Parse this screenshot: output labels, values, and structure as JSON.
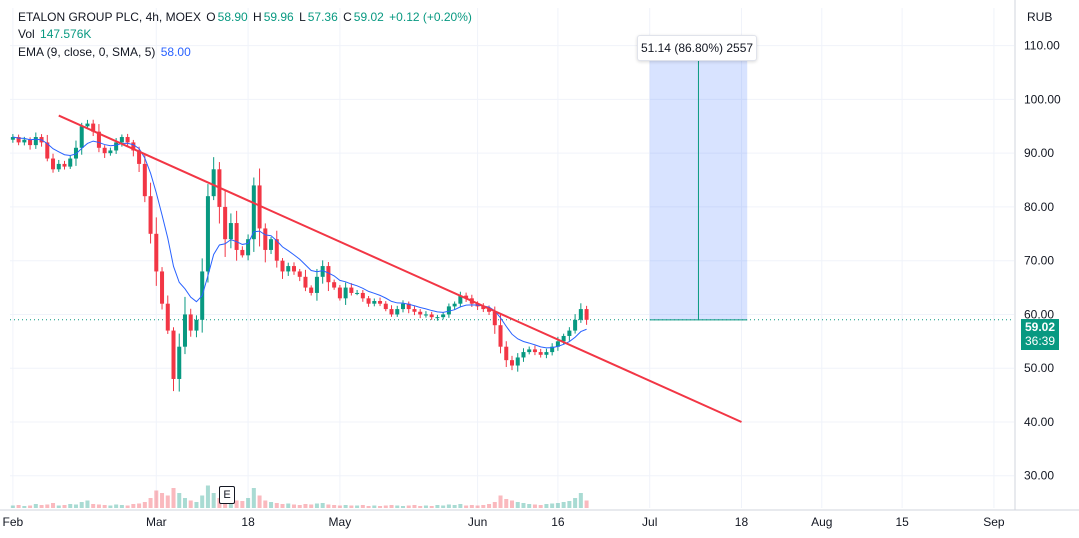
{
  "legend": {
    "symbol": "ETALON GROUP PLC, 4h, MOEX",
    "o_label": "O",
    "o_value": "58.90",
    "h_label": "H",
    "h_value": "59.96",
    "l_label": "L",
    "l_value": "57.36",
    "c_label": "C",
    "c_value": "59.02",
    "change": "+0.12 (+0.20%)",
    "vol_label": "Vol",
    "vol_value": "147.576K",
    "ema_label": "EMA (9, close, 0, SMA, 5)",
    "ema_value": "58.00"
  },
  "price_scale": {
    "currency": "RUB",
    "last_price": "59.02",
    "countdown": "36:39"
  },
  "measure_tool": {
    "label": "51.14 (86.80%) 2557",
    "from_price": 59.0,
    "to_price": 110.0
  },
  "event_marker": "E",
  "colors": {
    "up": "#089981",
    "down": "#f23645",
    "ema": "#2962ff",
    "trendline": "#f23645",
    "measure": "#089981",
    "measure_fill": "#2962ff"
  },
  "chart_data": {
    "type": "candlestick",
    "y_ticks": [
      "110.00",
      "100.00",
      "90.00",
      "80.00",
      "70.00",
      "60.00",
      "50.00",
      "40.00",
      "30.00"
    ],
    "ylim": [
      24,
      117
    ],
    "x_ticks": [
      "Feb",
      "Mar",
      "18",
      "May",
      "Jun",
      "16",
      "Jul",
      "18",
      "Aug",
      "15",
      "Sep"
    ],
    "x_tick_idx": [
      0,
      25,
      41,
      57,
      81,
      95,
      111,
      127,
      141,
      155,
      171
    ],
    "n_slots": 175,
    "closes": [
      93,
      92,
      92.5,
      91.5,
      93,
      92,
      89,
      87,
      88,
      87.5,
      89,
      91,
      95,
      95.5,
      94,
      91,
      90,
      90.5,
      92,
      93,
      92,
      90.5,
      88,
      82,
      75,
      68,
      62,
      57,
      48,
      54,
      60,
      57,
      59,
      68,
      82,
      87,
      80,
      74,
      77,
      72,
      71,
      74,
      84,
      76,
      72,
      74,
      70,
      68,
      69,
      68,
      67,
      65,
      64,
      67,
      69,
      66,
      65,
      63,
      65,
      64,
      64,
      63,
      62,
      62.5,
      62,
      61,
      60,
      61,
      62,
      61,
      60.5,
      60,
      60,
      59.5,
      59.5,
      60,
      61.5,
      62,
      63.5,
      63,
      62,
      61.5,
      61,
      60.5,
      58,
      54,
      51.5,
      50.5,
      52,
      53,
      53.5,
      53,
      52.5,
      53,
      54,
      55,
      56,
      57,
      59,
      61,
      59
    ],
    "volume_rel": [
      0.05,
      0.06,
      0.04,
      0.05,
      0.08,
      0.06,
      0.07,
      0.1,
      0.05,
      0.06,
      0.08,
      0.07,
      0.12,
      0.15,
      0.08,
      0.07,
      0.06,
      0.05,
      0.07,
      0.06,
      0.05,
      0.08,
      0.09,
      0.12,
      0.2,
      0.35,
      0.3,
      0.25,
      0.4,
      0.3,
      0.2,
      0.15,
      0.12,
      0.25,
      0.45,
      0.3,
      0.2,
      0.18,
      0.22,
      0.15,
      0.14,
      0.2,
      0.4,
      0.25,
      0.15,
      0.12,
      0.1,
      0.08,
      0.09,
      0.07,
      0.06,
      0.08,
      0.07,
      0.09,
      0.1,
      0.07,
      0.06,
      0.05,
      0.06,
      0.05,
      0.05,
      0.06,
      0.04,
      0.05,
      0.04,
      0.05,
      0.06,
      0.05,
      0.04,
      0.05,
      0.06,
      0.04,
      0.05,
      0.04,
      0.06,
      0.05,
      0.07,
      0.06,
      0.08,
      0.05,
      0.06,
      0.05,
      0.06,
      0.08,
      0.12,
      0.25,
      0.18,
      0.15,
      0.12,
      0.1,
      0.08,
      0.07,
      0.06,
      0.08,
      0.09,
      0.1,
      0.12,
      0.14,
      0.2,
      0.3,
      0.15
    ],
    "trendline": {
      "from": {
        "idx": 8,
        "price": 97
      },
      "to": {
        "idx": 127,
        "price": 40
      }
    },
    "measure_range": {
      "from_idx": 111,
      "to_idx": 128
    }
  }
}
